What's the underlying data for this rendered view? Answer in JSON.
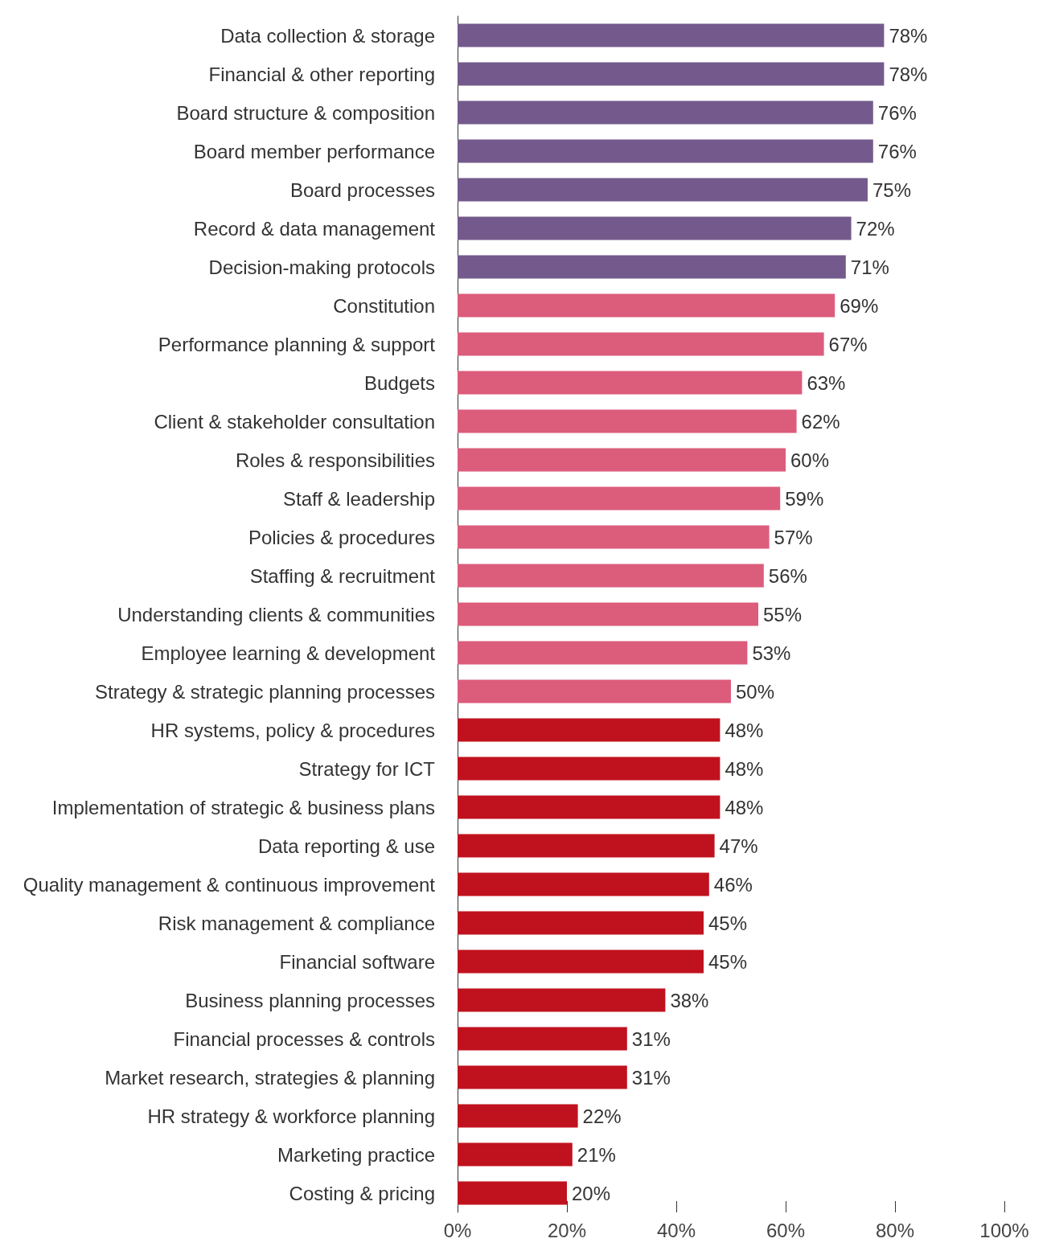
{
  "chart_data": {
    "type": "bar",
    "orientation": "horizontal",
    "categories": [
      "Data collection & storage",
      "Financial & other reporting",
      "Board structure & composition",
      "Board member performance",
      "Board processes",
      "Record & data management",
      "Decision-making protocols",
      "Constitution",
      "Performance planning & support",
      "Budgets",
      "Client & stakeholder consultation",
      "Roles & responsibilities",
      "Staff & leadership",
      "Policies & procedures",
      "Staffing & recruitment",
      "Understanding clients & communities",
      "Employee learning & development",
      "Strategy & strategic planning processes",
      "HR systems, policy & procedures",
      "Strategy for ICT",
      "Implementation of strategic & business plans",
      "Data reporting & use",
      "Quality management & continuous improvement",
      "Risk management & compliance",
      "Financial software",
      "Business planning processes",
      "Financial processes & controls",
      "Market research, strategies & planning",
      "HR strategy & workforce planning",
      "Marketing practice",
      "Costing & pricing"
    ],
    "values": [
      78,
      78,
      76,
      76,
      75,
      72,
      71,
      69,
      67,
      63,
      62,
      60,
      59,
      57,
      56,
      55,
      53,
      50,
      48,
      48,
      48,
      47,
      46,
      45,
      45,
      38,
      31,
      31,
      22,
      21,
      20
    ],
    "value_labels": [
      "78%",
      "78%",
      "76%",
      "76%",
      "75%",
      "72%",
      "71%",
      "69%",
      "67%",
      "63%",
      "62%",
      "60%",
      "59%",
      "57%",
      "56%",
      "55%",
      "53%",
      "50%",
      "48%",
      "48%",
      "48%",
      "47%",
      "46%",
      "45%",
      "45%",
      "38%",
      "31%",
      "31%",
      "22%",
      "21%",
      "20%"
    ],
    "colors": [
      "#745a8c",
      "#745a8c",
      "#745a8c",
      "#745a8c",
      "#745a8c",
      "#745a8c",
      "#745a8c",
      "#dc5c7c",
      "#dc5c7c",
      "#dc5c7c",
      "#dc5c7c",
      "#dc5c7c",
      "#dc5c7c",
      "#dc5c7c",
      "#dc5c7c",
      "#dc5c7c",
      "#dc5c7c",
      "#dc5c7c",
      "#c0121e",
      "#c0121e",
      "#c0121e",
      "#c0121e",
      "#c0121e",
      "#c0121e",
      "#c0121e",
      "#c0121e",
      "#c0121e",
      "#c0121e",
      "#c0121e",
      "#c0121e",
      "#c0121e"
    ],
    "xlim": [
      0,
      100
    ],
    "xticks": [
      {
        "value": 0,
        "label": "0%"
      },
      {
        "value": 20,
        "label": "20%"
      },
      {
        "value": 40,
        "label": "40%"
      },
      {
        "value": 60,
        "label": "60%"
      },
      {
        "value": 80,
        "label": "80%"
      },
      {
        "value": 100,
        "label": "100%"
      }
    ],
    "grid": false
  }
}
